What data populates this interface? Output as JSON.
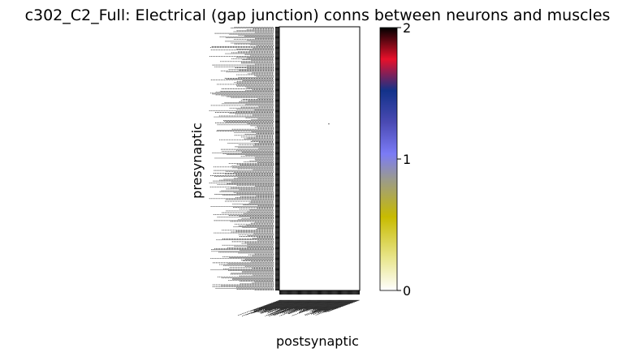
{
  "chart_data": {
    "type": "heatmap",
    "title": "c302_C2_Full: Electrical (gap junction) conns between neurons and muscles",
    "xlabel": "postsynaptic",
    "ylabel": "presynaptic",
    "matrix_shape": [
      300,
      95
    ],
    "nonzero_cells": [
      {
        "row": 110,
        "col": 58,
        "value": 2
      }
    ],
    "colorbar": {
      "range": [
        0,
        2
      ],
      "ticks": [
        "0",
        "1",
        "2"
      ],
      "colors": [
        "#ffffff",
        "#e9e68f",
        "#c8bb00",
        "#9b9b8a",
        "#7b7bf6",
        "#4a4ab3",
        "#12328a",
        "#e8102a",
        "#000000"
      ]
    },
    "grid": false
  }
}
